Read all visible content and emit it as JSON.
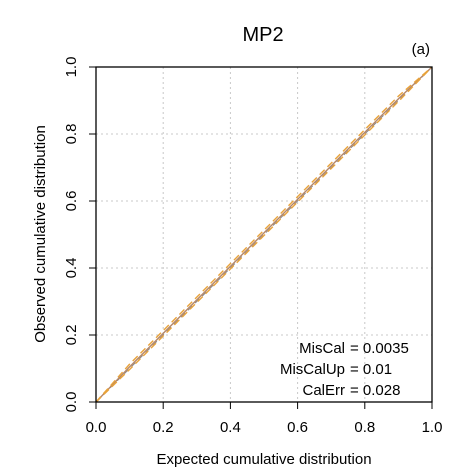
{
  "chart_data": {
    "type": "line",
    "title": "MP2",
    "panel_label": "(a)",
    "xlabel": "Expected cumulative distribution",
    "ylabel": "Observed cumulative distribution",
    "xlim": [
      0,
      1
    ],
    "ylim": [
      0,
      1
    ],
    "x_ticks": [
      "0.0",
      "0.2",
      "0.4",
      "0.6",
      "0.8",
      "1.0"
    ],
    "y_ticks": [
      "0.0",
      "0.2",
      "0.4",
      "0.6",
      "0.8",
      "1.0"
    ],
    "grid": true,
    "series": [
      {
        "color": "#b5876a",
        "style": "solid",
        "x": [
          0,
          0.1,
          0.2,
          0.3,
          0.4,
          0.5,
          0.6,
          0.7,
          0.8,
          0.9,
          1.0
        ],
        "y": [
          0,
          0.105,
          0.205,
          0.305,
          0.405,
          0.505,
          0.605,
          0.705,
          0.805,
          0.905,
          1.0
        ]
      },
      {
        "color": "#e8a23a",
        "style": "dashed",
        "x": [
          0,
          0.1,
          0.2,
          0.3,
          0.4,
          0.5,
          0.6,
          0.7,
          0.8,
          0.9,
          1.0
        ],
        "y": [
          0,
          0.113,
          0.213,
          0.313,
          0.413,
          0.513,
          0.613,
          0.713,
          0.813,
          0.913,
          1.0
        ]
      },
      {
        "color": "#e8a23a",
        "style": "dashed",
        "x": [
          0,
          0.1,
          0.2,
          0.3,
          0.4,
          0.5,
          0.6,
          0.7,
          0.8,
          0.9,
          1.0
        ],
        "y": [
          0,
          0.097,
          0.197,
          0.297,
          0.397,
          0.497,
          0.597,
          0.697,
          0.797,
          0.897,
          1.0
        ]
      }
    ],
    "reference_line": {
      "x": [
        0,
        1
      ],
      "y": [
        0,
        1
      ],
      "style": "dashed",
      "color": "#888888"
    },
    "annotations": [
      {
        "label": "MisCal",
        "value": "= 0.0035"
      },
      {
        "label": "MisCalUp",
        "value": "= 0.01"
      },
      {
        "label": "CalErr",
        "value": "= 0.028"
      }
    ]
  }
}
